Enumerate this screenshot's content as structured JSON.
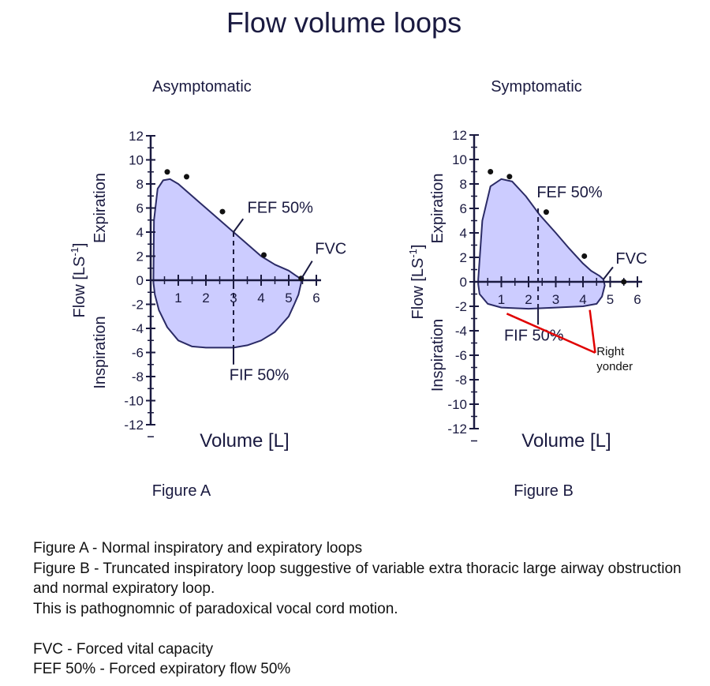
{
  "title": "Flow volume loops",
  "chart_data": [
    {
      "type": "line",
      "subtitle": "Asymptomatic",
      "caption": "Figure A",
      "xlabel": "Volume [L]",
      "ylabel": "Flow [LS-1]",
      "ylabel_parts": {
        "base": "Flow [LS",
        "sup": "-1",
        "close": "]"
      },
      "upper_side_label": "Expiration",
      "lower_side_label": "Inspiration",
      "xlim": [
        0,
        6
      ],
      "ylim": [
        -12,
        12
      ],
      "x_ticks": [
        1,
        2,
        3,
        4,
        5,
        6
      ],
      "y_ticks": [
        12,
        10,
        8,
        6,
        4,
        2,
        0,
        -2,
        -4,
        -6,
        -8,
        -10,
        -12
      ],
      "grid": false,
      "fill_color": "#ccccff",
      "line_color": "#2b2b66",
      "loop": [
        [
          0.1,
          0.2
        ],
        [
          0.12,
          5.0
        ],
        [
          0.25,
          7.6
        ],
        [
          0.45,
          8.3
        ],
        [
          0.7,
          8.4
        ],
        [
          1.0,
          8.0
        ],
        [
          1.5,
          7.0
        ],
        [
          2.0,
          6.0
        ],
        [
          2.5,
          5.0
        ],
        [
          3.0,
          4.0
        ],
        [
          3.5,
          3.0
        ],
        [
          4.0,
          2.0
        ],
        [
          4.5,
          1.3
        ],
        [
          5.0,
          0.8
        ],
        [
          5.25,
          0.4
        ],
        [
          5.45,
          0.1
        ],
        [
          5.45,
          -0.2
        ],
        [
          5.35,
          -1.2
        ],
        [
          5.2,
          -2.0
        ],
        [
          5.0,
          -3.0
        ],
        [
          4.5,
          -4.3
        ],
        [
          4.0,
          -5.0
        ],
        [
          3.5,
          -5.4
        ],
        [
          3.0,
          -5.6
        ],
        [
          2.5,
          -5.6
        ],
        [
          2.0,
          -5.6
        ],
        [
          1.5,
          -5.5
        ],
        [
          1.0,
          -5.0
        ],
        [
          0.6,
          -3.9
        ],
        [
          0.3,
          -2.5
        ],
        [
          0.15,
          -1.2
        ],
        [
          0.1,
          -0.2
        ]
      ],
      "points": [
        [
          0.6,
          9.0
        ],
        [
          1.3,
          8.6
        ],
        [
          2.6,
          5.7
        ],
        [
          4.1,
          2.1
        ],
        [
          5.45,
          0.15
        ]
      ],
      "markers": [
        {
          "x": 3.0,
          "y_from": 4.0,
          "y_to": -5.6
        }
      ],
      "annotations": [
        {
          "text": "FEF 50%",
          "x": 3.5,
          "y": 5.6,
          "line_from": [
            3.0,
            4.0
          ],
          "line_to": [
            3.35,
            5.1
          ]
        },
        {
          "text": "FIF 50%",
          "x": 2.85,
          "y": -8.3,
          "line_from": [
            3.0,
            -5.6
          ],
          "line_to": [
            3.0,
            -7.0
          ]
        },
        {
          "text": "FVC",
          "x": 5.95,
          "y": 2.2,
          "line_from": [
            5.45,
            0.1
          ],
          "line_to": [
            5.85,
            1.6
          ]
        }
      ]
    },
    {
      "type": "line",
      "subtitle": "Symptomatic",
      "caption": "Figure B",
      "xlabel": "Volume [L]",
      "ylabel": "Flow [LS-1]",
      "ylabel_parts": {
        "base": "Flow [LS",
        "sup": "-1",
        "close": "]"
      },
      "upper_side_label": "Expiration",
      "lower_side_label": "Inspiration",
      "xlim": [
        0,
        6
      ],
      "ylim": [
        -12,
        12
      ],
      "x_ticks": [
        1,
        2,
        3,
        4,
        5,
        6
      ],
      "y_ticks": [
        12,
        10,
        8,
        6,
        4,
        2,
        0,
        -2,
        -4,
        -6,
        -8,
        -10,
        -12
      ],
      "grid": false,
      "fill_color": "#ccccff",
      "line_color": "#2b2b66",
      "loop": [
        [
          0.15,
          0.2
        ],
        [
          0.3,
          5.0
        ],
        [
          0.6,
          7.8
        ],
        [
          1.0,
          8.4
        ],
        [
          1.4,
          8.2
        ],
        [
          1.9,
          7.0
        ],
        [
          2.4,
          5.5
        ],
        [
          3.0,
          4.0
        ],
        [
          3.5,
          2.7
        ],
        [
          4.0,
          1.5
        ],
        [
          4.3,
          0.9
        ],
        [
          4.6,
          0.5
        ],
        [
          4.75,
          0.2
        ],
        [
          4.8,
          -0.3
        ],
        [
          4.7,
          -1.2
        ],
        [
          4.5,
          -1.8
        ],
        [
          4.0,
          -2.0
        ],
        [
          3.0,
          -2.1
        ],
        [
          2.0,
          -2.2
        ],
        [
          1.0,
          -2.1
        ],
        [
          0.5,
          -1.8
        ],
        [
          0.2,
          -1.0
        ],
        [
          0.15,
          -0.2
        ]
      ],
      "points": [
        [
          0.6,
          9.0
        ],
        [
          1.3,
          8.6
        ],
        [
          2.65,
          5.7
        ],
        [
          4.05,
          2.1
        ],
        [
          5.5,
          0.0
        ]
      ],
      "markers": [
        {
          "x": 2.35,
          "y_from": 6.0,
          "y_to": -2.2
        }
      ],
      "annotations": [
        {
          "text": "FEF 50%",
          "x": 2.3,
          "y": 6.9,
          "line_from": [
            2.35,
            6.0
          ],
          "line_to": [
            2.35,
            6.0
          ]
        },
        {
          "text": "FIF 50%",
          "x": 1.1,
          "y": -4.8,
          "line_from": [
            2.35,
            -2.2
          ],
          "line_to": [
            2.35,
            -3.5
          ]
        },
        {
          "text": "FVC",
          "x": 5.2,
          "y": 1.5,
          "line_from": [
            4.75,
            0.2
          ],
          "line_to": [
            5.1,
            1.2
          ]
        }
      ],
      "callout": {
        "text_lines": [
          "Right",
          "yonder"
        ],
        "color": "#e00000",
        "line_a": [
          [
            1.2,
            -2.6
          ],
          [
            4.45,
            -5.8
          ]
        ],
        "line_b": [
          [
            4.25,
            -2.3
          ],
          [
            4.45,
            -5.8
          ]
        ],
        "text_x": 4.5,
        "text_y": -6.0
      }
    }
  ],
  "notes": [
    "Figure A - Normal inspiratory and expiratory loops",
    "Figure B - Truncated inspiratory loop suggestive of variable extra thoracic large airway obstruction and normal expiratory loop.",
    "This is pathognomnic of paradoxical vocal cord motion.",
    "",
    "FVC - Forced vital capacity",
    "FEF 50% - Forced expiratory flow 50%"
  ]
}
